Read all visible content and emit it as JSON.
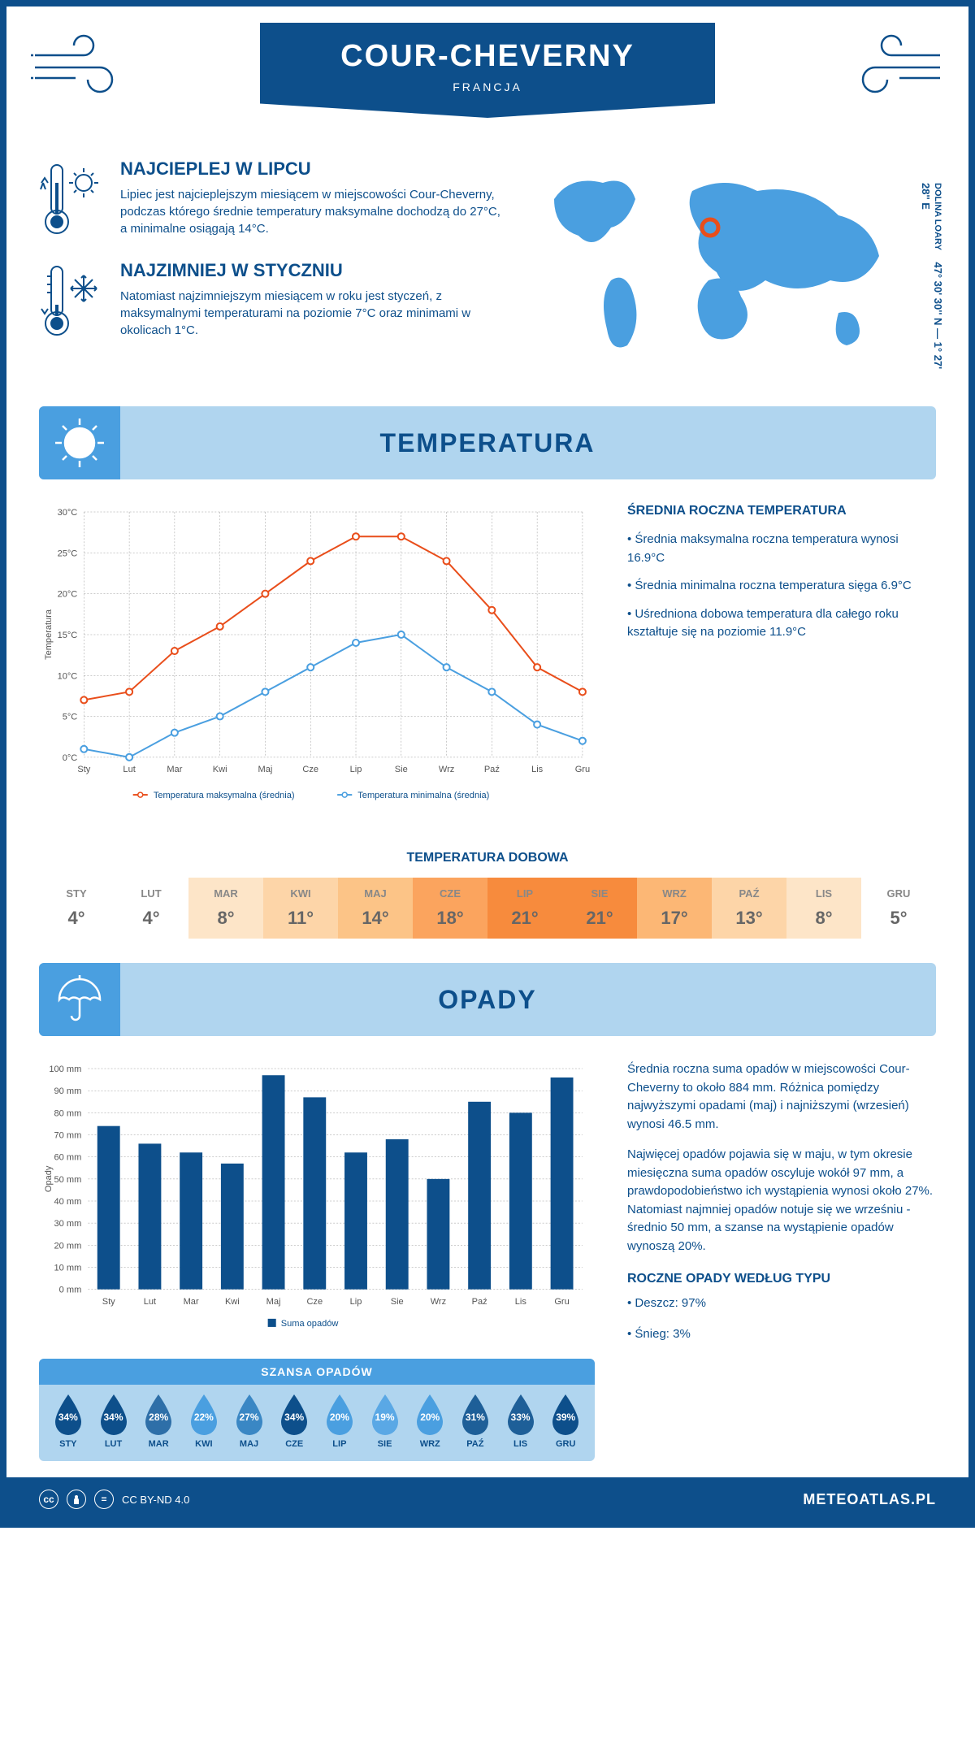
{
  "header": {
    "title": "COUR-CHEVERNY",
    "subtitle": "FRANCJA"
  },
  "coords": {
    "lat": "47° 30' 30'' N — 1° 27' 28'' E",
    "region": "DOLINA LOARY"
  },
  "warmest": {
    "title": "NAJCIEPLEJ W LIPCU",
    "text": "Lipiec jest najcieplejszym miesiącem w miejscowości Cour-Cheverny, podczas którego średnie temperatury maksymalne dochodzą do 27°C, a minimalne osiągają 14°C."
  },
  "coldest": {
    "title": "NAJZIMNIEJ W STYCZNIU",
    "text": "Natomiast najzimniejszym miesiącem w roku jest styczeń, z maksymalnymi temperaturami na poziomie 7°C oraz minimami w okolicach 1°C."
  },
  "sections": {
    "temperature": "TEMPERATURA",
    "precipitation": "OPADY"
  },
  "temp_chart": {
    "type": "line",
    "months": [
      "Sty",
      "Lut",
      "Mar",
      "Kwi",
      "Maj",
      "Cze",
      "Lip",
      "Sie",
      "Wrz",
      "Paź",
      "Lis",
      "Gru"
    ],
    "max_values": [
      7,
      8,
      13,
      16,
      20,
      24,
      27,
      27,
      24,
      18,
      11,
      8
    ],
    "min_values": [
      1,
      0,
      3,
      5,
      8,
      11,
      14,
      15,
      11,
      8,
      4,
      2
    ],
    "max_color": "#e94e1b",
    "min_color": "#4a9fe0",
    "ylabel": "Temperatura",
    "ylim": [
      0,
      30
    ],
    "ytick_step": 5,
    "ytick_suffix": "°C",
    "legend_max": "Temperatura maksymalna (średnia)",
    "legend_min": "Temperatura minimalna (średnia)",
    "grid_color": "#999999",
    "marker_size": 4,
    "line_width": 2
  },
  "temp_info": {
    "title": "ŚREDNIA ROCZNA TEMPERATURA",
    "bullets": [
      "• Średnia maksymalna roczna temperatura wynosi 16.9°C",
      "• Średnia minimalna roczna temperatura sięga 6.9°C",
      "• Uśredniona dobowa temperatura dla całego roku kształtuje się na poziomie 11.9°C"
    ]
  },
  "daily_temp": {
    "title": "TEMPERATURA DOBOWA",
    "months": [
      "STY",
      "LUT",
      "MAR",
      "KWI",
      "MAJ",
      "CZE",
      "LIP",
      "SIE",
      "WRZ",
      "PAŹ",
      "LIS",
      "GRU"
    ],
    "values": [
      "4°",
      "4°",
      "8°",
      "11°",
      "14°",
      "18°",
      "21°",
      "21°",
      "17°",
      "13°",
      "8°",
      "5°"
    ],
    "bg_colors": [
      "#ffffff",
      "#ffffff",
      "#fde5c8",
      "#fdd5a8",
      "#fcc487",
      "#fba45e",
      "#f78b3d",
      "#f78b3d",
      "#fcb775",
      "#fdd5a8",
      "#fde5c8",
      "#ffffff"
    ]
  },
  "precip_chart": {
    "type": "bar",
    "months": [
      "Sty",
      "Lut",
      "Mar",
      "Kwi",
      "Maj",
      "Cze",
      "Lip",
      "Sie",
      "Wrz",
      "Paź",
      "Lis",
      "Gru"
    ],
    "values": [
      74,
      66,
      62,
      57,
      97,
      87,
      62,
      68,
      50,
      85,
      80,
      96
    ],
    "bar_color": "#0d4f8b",
    "ylabel": "Opady",
    "ylim": [
      0,
      100
    ],
    "ytick_step": 10,
    "ytick_suffix": " mm",
    "legend": "Suma opadów",
    "bar_width": 0.55
  },
  "precip_text": {
    "p1": "Średnia roczna suma opadów w miejscowości Cour-Cheverny to około 884 mm. Różnica pomiędzy najwyższymi opadami (maj) i najniższymi (wrzesień) wynosi 46.5 mm.",
    "p2": "Najwięcej opadów pojawia się w maju, w tym okresie miesięczna suma opadów oscyluje wokół 97 mm, a prawdopodobieństwo ich wystąpienia wynosi około 27%. Natomiast najmniej opadów notuje się we wrześniu - średnio 50 mm, a szanse na wystąpienie opadów wynoszą 20%."
  },
  "chance": {
    "title": "SZANSA OPADÓW",
    "months": [
      "STY",
      "LUT",
      "MAR",
      "KWI",
      "MAJ",
      "CZE",
      "LIP",
      "SIE",
      "WRZ",
      "PAŹ",
      "LIS",
      "GRU"
    ],
    "values": [
      "34%",
      "34%",
      "28%",
      "22%",
      "27%",
      "34%",
      "20%",
      "19%",
      "20%",
      "31%",
      "33%",
      "39%"
    ],
    "colors": [
      "#0d4f8b",
      "#0d4f8b",
      "#2e6fa8",
      "#4a9fe0",
      "#3a87c4",
      "#0d4f8b",
      "#4a9fe0",
      "#5aa8e5",
      "#4a9fe0",
      "#1e5f98",
      "#1e5f98",
      "#0d4f8b"
    ]
  },
  "precip_type": {
    "title": "ROCZNE OPADY WEDŁUG TYPU",
    "items": [
      "• Deszcz: 97%",
      "• Śnieg: 3%"
    ]
  },
  "footer": {
    "license": "CC BY-ND 4.0",
    "site": "METEOATLAS.PL"
  },
  "colors": {
    "primary": "#0d4f8b",
    "light_blue": "#b0d5ef",
    "mid_blue": "#4a9fe0"
  }
}
